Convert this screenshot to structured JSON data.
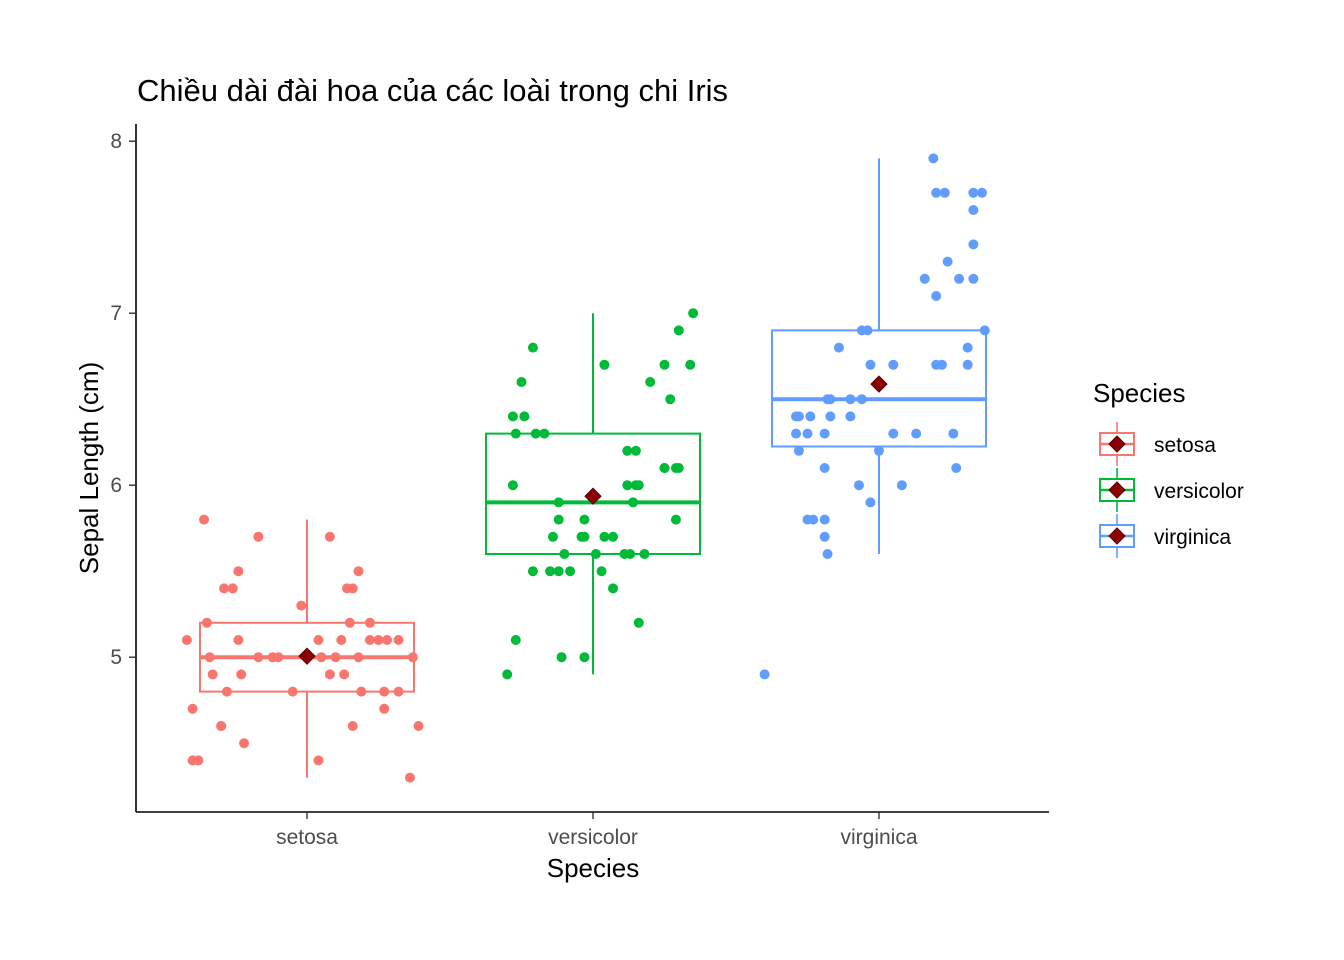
{
  "chart_data": {
    "type": "box",
    "title": "Chiều dài đài hoa của các loài trong chi Iris",
    "xlabel": "Species",
    "ylabel": "Sepal Length (cm)",
    "categories": [
      "setosa",
      "versicolor",
      "virginica"
    ],
    "ylim": [
      4.1,
      8.1
    ],
    "yticks": [
      "5",
      "6",
      "7",
      "8"
    ],
    "grid": false,
    "legend": {
      "title": "Species",
      "position": "right",
      "entries": [
        "setosa",
        "versicolor",
        "virginica"
      ]
    },
    "series": [
      {
        "name": "setosa",
        "color": "#F8766D",
        "box": {
          "min": 4.3,
          "q1": 4.8,
          "median": 5.0,
          "q3": 5.2,
          "max": 5.8
        },
        "mean": 5.006,
        "points": [
          [
            -0.42,
            5.1
          ],
          [
            -0.33,
            4.9
          ],
          [
            -0.4,
            4.7
          ],
          [
            0.39,
            4.6
          ],
          [
            0.37,
            5.0
          ],
          [
            0.16,
            5.4
          ],
          [
            -0.3,
            4.6
          ],
          [
            0.1,
            5.0
          ],
          [
            -0.38,
            4.4
          ],
          [
            0.08,
            4.9
          ],
          [
            0.14,
            5.4
          ],
          [
            0.27,
            4.8
          ],
          [
            -0.28,
            4.8
          ],
          [
            0.36,
            4.3
          ],
          [
            -0.36,
            5.8
          ],
          [
            0.08,
            5.7
          ],
          [
            -0.26,
            5.4
          ],
          [
            0.32,
            5.1
          ],
          [
            -0.17,
            5.7
          ],
          [
            0.28,
            5.1
          ],
          [
            -0.26,
            5.4
          ],
          [
            -0.24,
            5.1
          ],
          [
            -0.3,
            4.6
          ],
          [
            0.25,
            5.1
          ],
          [
            0.32,
            4.8
          ],
          [
            0.05,
            5.0
          ],
          [
            -0.17,
            5.0
          ],
          [
            0.15,
            5.2
          ],
          [
            0.22,
            5.2
          ],
          [
            0.27,
            4.7
          ],
          [
            -0.05,
            4.8
          ],
          [
            -0.29,
            5.4
          ],
          [
            -0.35,
            5.2
          ],
          [
            0.18,
            5.5
          ],
          [
            -0.23,
            4.9
          ],
          [
            -0.12,
            5.0
          ],
          [
            -0.24,
            5.5
          ],
          [
            0.13,
            4.9
          ],
          [
            -0.4,
            4.4
          ],
          [
            0.22,
            5.1
          ],
          [
            -0.1,
            5.0
          ],
          [
            -0.22,
            4.5
          ],
          [
            0.04,
            4.4
          ],
          [
            0.18,
            5.0
          ],
          [
            0.12,
            5.1
          ],
          [
            0.19,
            4.8
          ],
          [
            0.04,
            5.1
          ],
          [
            0.16,
            4.6
          ],
          [
            -0.02,
            5.3
          ],
          [
            -0.34,
            5.0
          ]
        ]
      },
      {
        "name": "versicolor",
        "color": "#00BA38",
        "box": {
          "min": 4.9,
          "q1": 5.6,
          "median": 5.9,
          "q3": 6.3,
          "max": 7.0
        },
        "mean": 5.936,
        "points": [
          [
            0.35,
            7.0
          ],
          [
            -0.24,
            6.4
          ],
          [
            0.3,
            6.9
          ],
          [
            -0.08,
            5.5
          ],
          [
            0.27,
            6.5
          ],
          [
            0.07,
            5.7
          ],
          [
            -0.2,
            6.3
          ],
          [
            -0.3,
            4.9
          ],
          [
            0.2,
            6.6
          ],
          [
            0.16,
            5.2
          ],
          [
            -0.03,
            5.0
          ],
          [
            -0.12,
            5.9
          ],
          [
            0.16,
            6.0
          ],
          [
            0.25,
            6.1
          ],
          [
            0.13,
            5.6
          ],
          [
            0.34,
            6.7
          ],
          [
            -0.1,
            5.6
          ],
          [
            -0.03,
            5.8
          ],
          [
            0.12,
            6.2
          ],
          [
            0.01,
            5.6
          ],
          [
            0.14,
            5.9
          ],
          [
            0.3,
            6.1
          ],
          [
            -0.17,
            6.3
          ],
          [
            0.29,
            6.1
          ],
          [
            -0.28,
            6.4
          ],
          [
            -0.25,
            6.6
          ],
          [
            -0.21,
            6.8
          ],
          [
            0.25,
            6.7
          ],
          [
            0.15,
            6.0
          ],
          [
            -0.14,
            5.7
          ],
          [
            -0.21,
            5.5
          ],
          [
            -0.15,
            5.5
          ],
          [
            -0.12,
            5.8
          ],
          [
            0.12,
            6.0
          ],
          [
            0.07,
            5.4
          ],
          [
            -0.28,
            6.0
          ],
          [
            0.04,
            6.7
          ],
          [
            -0.27,
            6.3
          ],
          [
            0.18,
            5.6
          ],
          [
            -0.12,
            5.5
          ],
          [
            0.03,
            5.5
          ],
          [
            0.25,
            6.1
          ],
          [
            0.29,
            5.8
          ],
          [
            -0.11,
            5.0
          ],
          [
            0.11,
            5.6
          ],
          [
            0.04,
            5.7
          ],
          [
            -0.04,
            5.7
          ],
          [
            0.15,
            6.2
          ],
          [
            -0.27,
            5.1
          ],
          [
            -0.03,
            5.7
          ]
        ]
      },
      {
        "name": "virginica",
        "color": "#619CFF",
        "box": {
          "min": 5.6,
          "q1": 6.225,
          "median": 6.5,
          "q3": 6.9,
          "max": 7.9
        },
        "mean": 6.588,
        "points": [
          [
            -0.29,
            6.3
          ],
          [
            -0.19,
            5.8
          ],
          [
            0.2,
            7.1
          ],
          [
            0.13,
            6.3
          ],
          [
            -0.17,
            6.5
          ],
          [
            0.33,
            7.6
          ],
          [
            -0.4,
            4.9
          ],
          [
            0.24,
            7.3
          ],
          [
            0.05,
            6.7
          ],
          [
            0.28,
            7.2
          ],
          [
            -0.18,
            6.5
          ],
          [
            -0.24,
            6.4
          ],
          [
            -0.14,
            6.8
          ],
          [
            -0.19,
            5.7
          ],
          [
            -0.23,
            5.8
          ],
          [
            -0.29,
            6.4
          ],
          [
            -0.1,
            6.5
          ],
          [
            0.2,
            7.7
          ],
          [
            0.36,
            7.7
          ],
          [
            0.08,
            6.0
          ],
          [
            -0.04,
            6.9
          ],
          [
            -0.18,
            5.6
          ],
          [
            0.23,
            7.7
          ],
          [
            -0.25,
            6.3
          ],
          [
            0.31,
            6.7
          ],
          [
            0.33,
            7.2
          ],
          [
            -0.28,
            6.2
          ],
          [
            0.27,
            6.1
          ],
          [
            -0.1,
            6.4
          ],
          [
            0.16,
            7.2
          ],
          [
            0.33,
            7.4
          ],
          [
            0.19,
            7.9
          ],
          [
            -0.28,
            6.4
          ],
          [
            -0.19,
            6.3
          ],
          [
            -0.19,
            6.1
          ],
          [
            0.33,
            7.7
          ],
          [
            0.26,
            6.3
          ],
          [
            -0.17,
            6.4
          ],
          [
            -0.07,
            6.0
          ],
          [
            -0.06,
            6.9
          ],
          [
            0.22,
            6.7
          ],
          [
            0.37,
            6.9
          ],
          [
            -0.25,
            5.8
          ],
          [
            0.31,
            6.8
          ],
          [
            0.2,
            6.7
          ],
          [
            -0.03,
            6.7
          ],
          [
            0.05,
            6.3
          ],
          [
            -0.06,
            6.5
          ],
          [
            0.0,
            6.2
          ],
          [
            -0.03,
            5.9
          ]
        ]
      }
    ],
    "mean_marker": {
      "shape": "diamond",
      "color": "#8B0000"
    }
  }
}
